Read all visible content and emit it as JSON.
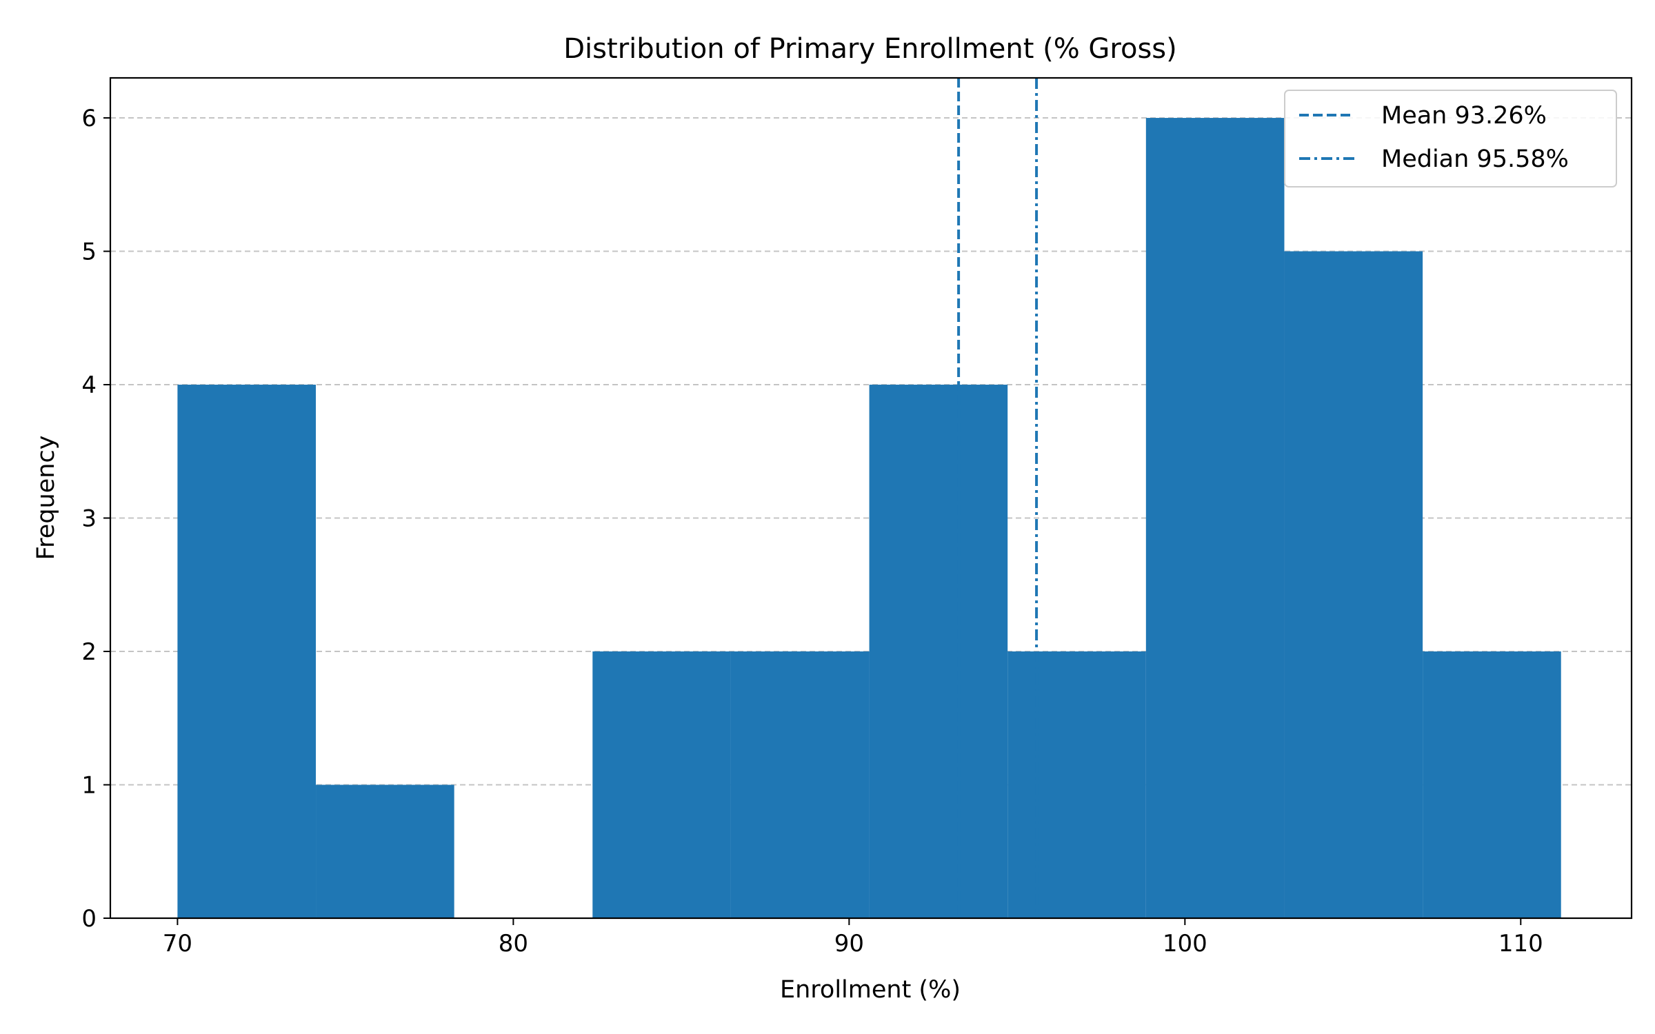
{
  "chart_data": {
    "type": "bar",
    "title": "Distribution of Primary Enrollment (% Gross)",
    "xlabel": "Enrollment (%)",
    "ylabel": "Frequency",
    "xlim": [
      68,
      113.3
    ],
    "ylim": [
      0,
      6.3
    ],
    "xticks": [
      70,
      80,
      90,
      100,
      110
    ],
    "yticks": [
      0,
      1,
      2,
      3,
      4,
      5,
      6
    ],
    "grid": {
      "axis": "y",
      "style": "dashed"
    },
    "bin_edges": [
      70.0,
      74.12,
      78.24,
      82.36,
      86.48,
      90.6,
      94.72,
      98.84,
      102.96,
      107.08,
      111.2
    ],
    "values": [
      4,
      1,
      0,
      2,
      2,
      4,
      2,
      6,
      5,
      2
    ],
    "bar_color": "#1f77b4",
    "reference_lines": [
      {
        "label": "Mean 93.26%",
        "x": 93.26,
        "style": "dashed"
      },
      {
        "label": "Median 95.58%",
        "x": 95.58,
        "style": "dashdot"
      }
    ],
    "legend_position": "upper right"
  }
}
